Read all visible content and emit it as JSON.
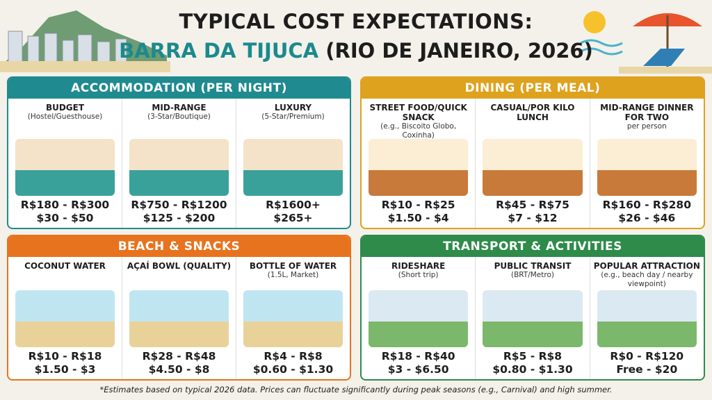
{
  "header": {
    "title": "TYPICAL COST EXPECTATIONS:",
    "place": "BARRA DA TIJUCA",
    "place_note": "(RIO DE JANEIRO, 2026)"
  },
  "sections": [
    {
      "title": "ACCOMMODATION (PER NIGHT)",
      "items": [
        {
          "name": "BUDGET",
          "sub": "(Hostel/Guesthouse)",
          "price_brl": "R$180 - R$300",
          "price_usd": "$30 - $50"
        },
        {
          "name": "MID-RANGE",
          "sub": "(3-Star/Boutique)",
          "price_brl": "R$750 - R$1200",
          "price_usd": "$125 - $200"
        },
        {
          "name": "LUXURY",
          "sub": "(5-Star/Premium)",
          "price_brl": "R$1600+",
          "price_usd": "$265+"
        }
      ]
    },
    {
      "title": "DINING (PER MEAL)",
      "items": [
        {
          "name": "STREET FOOD/QUICK SNACK",
          "sub": "(e.g., Biscoito Globo, Coxinha)",
          "price_brl": "R$10 - R$25",
          "price_usd": "$1.50 - $4"
        },
        {
          "name": "CASUAL/POR KILO LUNCH",
          "price_brl": "R$45 - R$75",
          "price_usd": "$7 - $12"
        },
        {
          "name": "MID-RANGE DINNER FOR TWO",
          "sub": "per person",
          "price_brl": "R$160 - R$280",
          "price_usd": "$26 - $46"
        }
      ]
    },
    {
      "title": "BEACH & SNACKS",
      "items": [
        {
          "name": "COCONUT WATER",
          "price_brl": "R$10 - R$18",
          "price_usd": "$1.50 - $3"
        },
        {
          "name": "AÇAÍ BOWL (QUALITY)",
          "price_brl": "R$28 - R$48",
          "price_usd": "$4.50 - $8"
        },
        {
          "name": "BOTTLE OF WATER",
          "sub": "(1.5L, Market)",
          "price_brl": "R$4 - R$8",
          "price_usd": "$0.60 - $1.30"
        }
      ]
    },
    {
      "title": "TRANSPORT & ACTIVITIES",
      "items": [
        {
          "name": "RIDESHARE",
          "sub": "(Short trip)",
          "price_brl": "R$18 - R$40",
          "price_usd": "$3 - $6.50"
        },
        {
          "name": "PUBLIC TRANSIT",
          "sub": "(BRT/Metro)",
          "price_brl": "R$5 - R$8",
          "price_usd": "$0.80 - $1.30"
        },
        {
          "name": "POPULAR ATTRACTION",
          "sub": "(e.g., beach day / nearby viewpoint)",
          "price_brl": "R$0 - R$120",
          "price_usd": "Free - $20"
        }
      ]
    }
  ],
  "footer": "*Estimates based on typical 2026 data. Prices can fluctuate significantly during peak seasons (e.g., Carnival) and high summer."
}
